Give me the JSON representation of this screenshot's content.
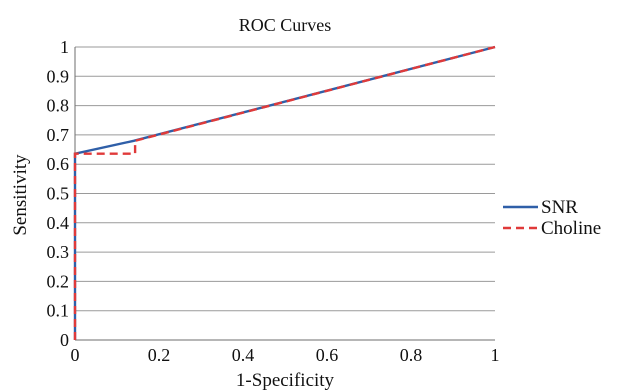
{
  "chart_data": {
    "type": "line",
    "title": "ROC Curves",
    "xlabel": "1-Specificity",
    "ylabel": "Sensitivity",
    "xlim": [
      0,
      1
    ],
    "ylim": [
      0,
      1
    ],
    "xticks": [
      "0",
      "0.2",
      "0.4",
      "0.6",
      "0.8",
      "1"
    ],
    "yticks": [
      "0",
      "0.1",
      "0.2",
      "0.3",
      "0.4",
      "0.5",
      "0.6",
      "0.7",
      "0.8",
      "0.9",
      "1"
    ],
    "grid": "horizontal",
    "legend_position": "right",
    "series": [
      {
        "name": "SNR",
        "color": "#2f5fa8",
        "line_style": "solid",
        "x": [
          0,
          0,
          0.14,
          1
        ],
        "y": [
          0,
          0.636,
          0.68,
          1
        ]
      },
      {
        "name": "Choline",
        "color": "#e03a3a",
        "line_style": "dashed",
        "x": [
          0,
          0,
          0.143,
          0.143,
          1
        ],
        "y": [
          0,
          0.636,
          0.636,
          0.68,
          1
        ]
      }
    ]
  }
}
